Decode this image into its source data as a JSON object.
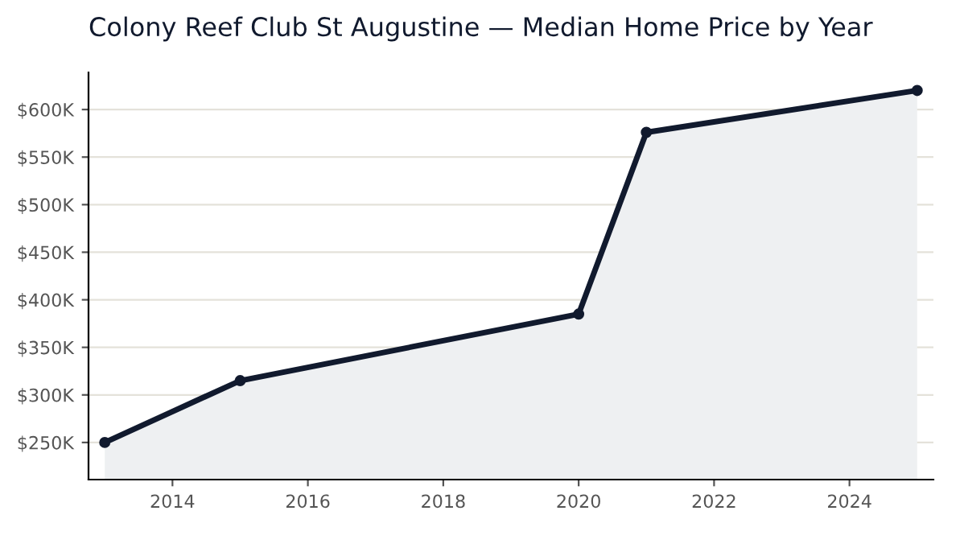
{
  "chart_data": {
    "type": "area",
    "title": "Colony Reef Club St Augustine — Median Home Price by Year",
    "x": [
      2013,
      2015,
      2020,
      2021,
      2025
    ],
    "series": [
      {
        "color": "#111a2e",
        "values": [
          250,
          315,
          385,
          576,
          620
        ]
      }
    ],
    "xlim": [
      2012.76,
      2025.24
    ],
    "xticks": [
      2014,
      2016,
      2018,
      2020,
      2022,
      2024
    ],
    "ylim": [
      211,
      639
    ],
    "yticks": [
      {
        "value": 250,
        "label": "$250K"
      },
      {
        "value": 300,
        "label": "$300K"
      },
      {
        "value": 350,
        "label": "$350K"
      },
      {
        "value": 400,
        "label": "$400K"
      },
      {
        "value": 450,
        "label": "$450K"
      },
      {
        "value": 500,
        "label": "$500K"
      },
      {
        "value": 550,
        "label": "$550K"
      },
      {
        "value": 600,
        "label": "$600K"
      }
    ],
    "grid": "y",
    "marker": "circle",
    "line_style": "solid",
    "legend": false
  }
}
